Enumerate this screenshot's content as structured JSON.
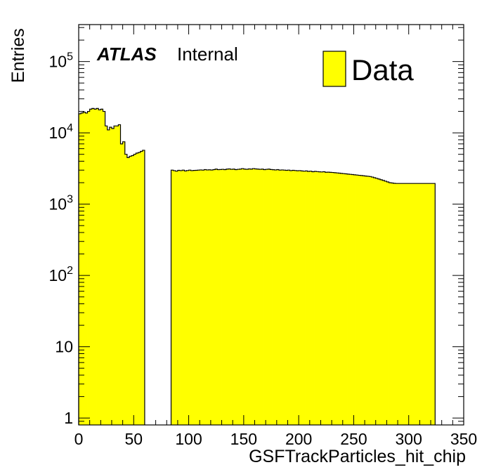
{
  "chart_data": {
    "type": "bar",
    "style": "histogram",
    "title": "",
    "experiment_label": "ATLAS",
    "status_label": "Internal",
    "xlabel": "GSFTrackParticles_hit_chip",
    "ylabel": "Entries",
    "xlim": [
      0,
      350
    ],
    "ylim": [
      0.8,
      330000
    ],
    "yscale": "log",
    "grid": false,
    "legend_position": "top-right",
    "fill_color": "#ffff00",
    "line_color": "#000000",
    "x_ticks": [
      {
        "value": 0,
        "label": "0"
      },
      {
        "value": 50,
        "label": "50"
      },
      {
        "value": 100,
        "label": "100"
      },
      {
        "value": 150,
        "label": "150"
      },
      {
        "value": 200,
        "label": "200"
      },
      {
        "value": 250,
        "label": "250"
      },
      {
        "value": 300,
        "label": "300"
      },
      {
        "value": 350,
        "label": "350"
      }
    ],
    "y_ticks": [
      {
        "value": 1,
        "base": "1",
        "exp": ""
      },
      {
        "value": 10,
        "base": "10",
        "exp": ""
      },
      {
        "value": 100,
        "base": "10",
        "exp": "2"
      },
      {
        "value": 1000,
        "base": "10",
        "exp": "3"
      },
      {
        "value": 10000,
        "base": "10",
        "exp": "4"
      },
      {
        "value": 100000,
        "base": "10",
        "exp": "5"
      }
    ],
    "series": [
      {
        "name": "Data",
        "bin_width": 2,
        "segments": [
          {
            "x_start": 0,
            "values": [
              18500,
              19000,
              19500,
              19000,
              20000,
              21500,
              22000,
              21500,
              22000,
              21000,
              21500,
              20000,
              12500,
              11000,
              12000,
              11500,
              12500,
              12500,
              13000,
              7000,
              7500,
              5000,
              4500,
              4700,
              4800,
              5000,
              5200,
              5300,
              5500,
              5700
            ]
          },
          {
            "x_start": 84,
            "values": [
              3000,
              2950,
              2900,
              2980,
              2950,
              3000,
              2920,
              2960,
              3000,
              2950,
              2970,
              2980,
              3000,
              3020,
              3000,
              3050,
              3020,
              3030,
              3010,
              3050,
              3100,
              3050,
              3060,
              3080,
              3050,
              3100,
              3120,
              3080,
              3100,
              3050,
              3080,
              3100,
              3150,
              3100,
              3080,
              3120,
              3100,
              3150,
              3120,
              3100,
              3080,
              3100,
              3050,
              3080,
              3100,
              3060,
              3040,
              3020,
              3050,
              3000,
              3020,
              3000,
              2980,
              3000,
              2950,
              2980,
              2960,
              2940,
              2950,
              2920,
              2900,
              2920,
              2880,
              2900,
              2850,
              2880,
              2860,
              2840,
              2830,
              2850,
              2800,
              2810,
              2790,
              2780,
              2760,
              2740,
              2720,
              2700,
              2680,
              2660,
              2640,
              2620,
              2600,
              2580,
              2560,
              2540,
              2520,
              2500,
              2480,
              2460,
              2440,
              2400,
              2350,
              2300,
              2250,
              2200,
              2150,
              2100,
              2050,
              2000,
              1980,
              1960,
              1950,
              1950,
              1950,
              1950,
              1950,
              1950,
              1950,
              1950,
              1950,
              1950,
              1950,
              1950,
              1950,
              1950,
              1950,
              1950,
              1950,
              1950
            ]
          }
        ]
      }
    ]
  }
}
